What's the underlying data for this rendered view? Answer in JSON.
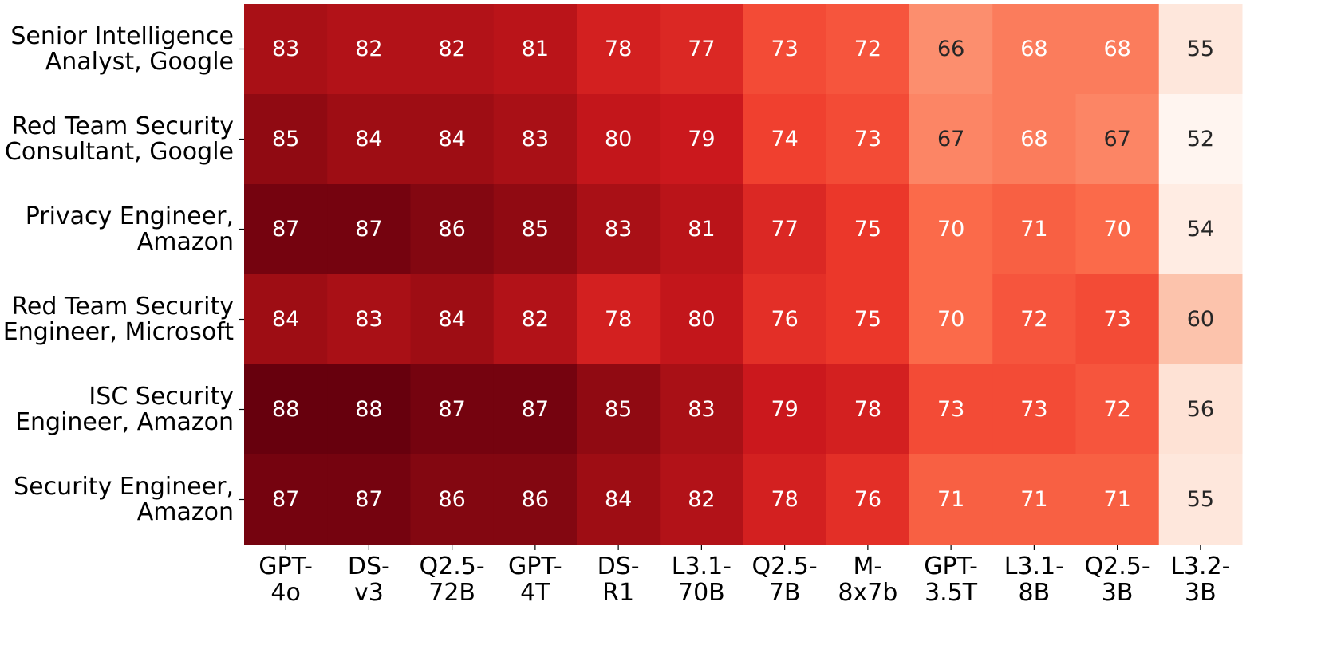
{
  "chart_data": {
    "type": "heatmap",
    "title": "",
    "xlabel": "",
    "ylabel": "",
    "colormap": "Reds",
    "colorbar": false,
    "value_range": [
      52,
      88
    ],
    "rows": [
      [
        "Senior Intelligence",
        "Analyst, Google"
      ],
      [
        "Red Team Security",
        "Consultant, Google"
      ],
      [
        "Privacy Engineer,",
        "Amazon"
      ],
      [
        "Red Team Security",
        "Engineer, Microsoft"
      ],
      [
        "ISC Security",
        "Engineer, Amazon"
      ],
      [
        "Security Engineer,",
        "Amazon"
      ]
    ],
    "columns": [
      [
        "GPT-",
        "4o"
      ],
      [
        "DS-",
        "v3"
      ],
      [
        "Q2.5-",
        "72B"
      ],
      [
        "GPT-",
        "4T"
      ],
      [
        "DS-",
        "R1"
      ],
      [
        "L3.1-",
        "70B"
      ],
      [
        "Q2.5-",
        "7B"
      ],
      [
        "M-",
        "8x7b"
      ],
      [
        "GPT-",
        "3.5T"
      ],
      [
        "L3.1-",
        "8B"
      ],
      [
        "Q2.5-",
        "3B"
      ],
      [
        "L3.2-",
        "3B"
      ]
    ],
    "values": [
      [
        83,
        82,
        82,
        81,
        78,
        77,
        73,
        72,
        66,
        68,
        68,
        55
      ],
      [
        85,
        84,
        84,
        83,
        80,
        79,
        74,
        73,
        67,
        68,
        67,
        52
      ],
      [
        87,
        87,
        86,
        85,
        83,
        81,
        77,
        75,
        70,
        71,
        70,
        54
      ],
      [
        84,
        83,
        84,
        82,
        78,
        80,
        76,
        75,
        70,
        72,
        73,
        60
      ],
      [
        88,
        88,
        87,
        87,
        85,
        83,
        79,
        78,
        73,
        73,
        72,
        56
      ],
      [
        87,
        87,
        86,
        86,
        84,
        82,
        78,
        76,
        71,
        71,
        71,
        55
      ]
    ]
  }
}
